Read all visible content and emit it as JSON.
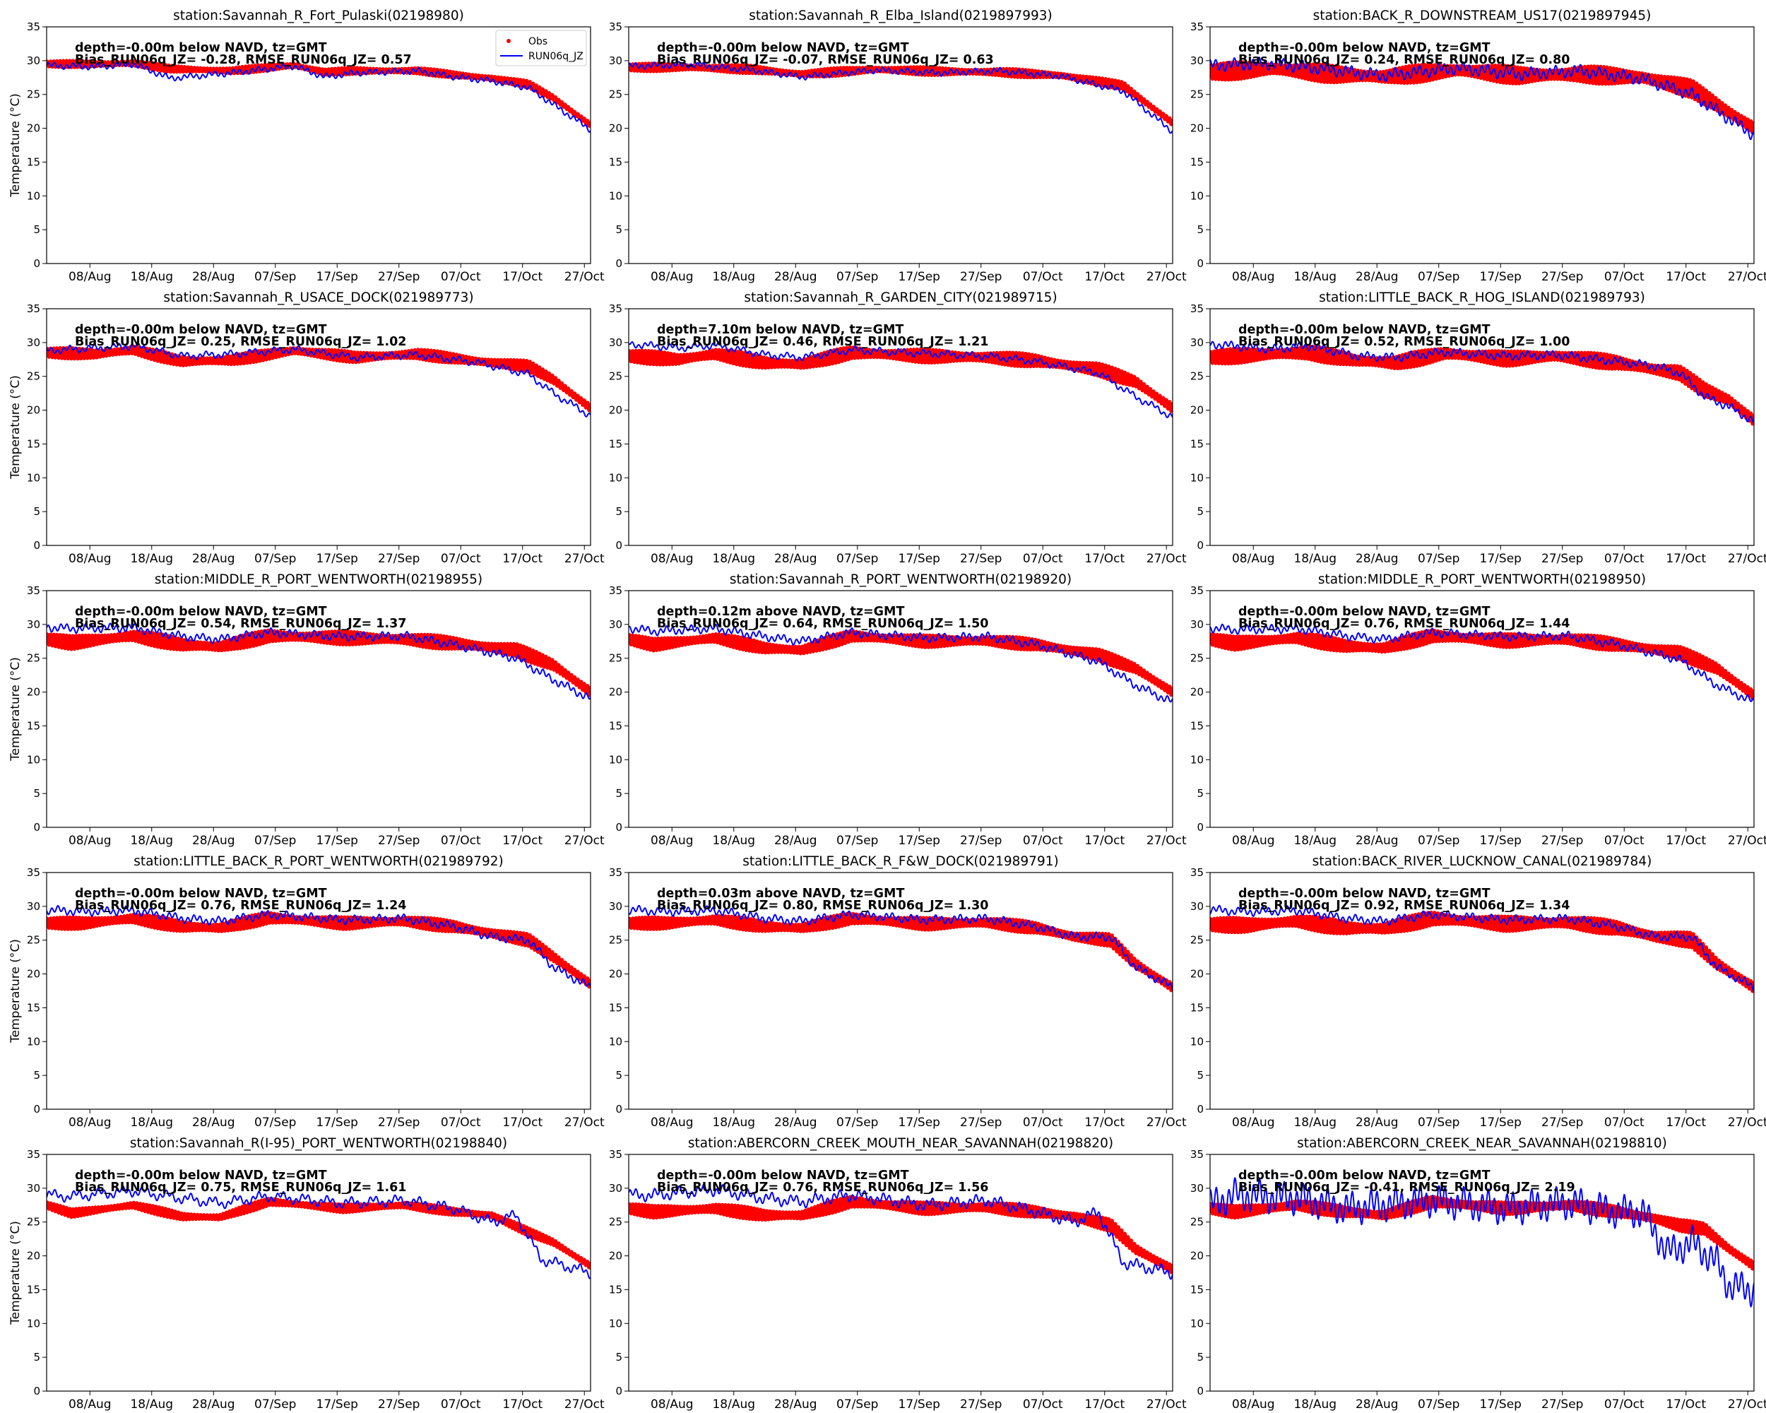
{
  "chart_data": {
    "type": "line",
    "ylabel": "Temperature ($^\\circ$C)",
    "ylabel_text": "Temperature (",
    "ylabel_unit": "°C)",
    "ylim": [
      0,
      35
    ],
    "yticks": [
      0,
      5,
      10,
      15,
      20,
      25,
      30,
      35
    ],
    "xlim_days": [
      0,
      88
    ],
    "xticks": [
      {
        "day": 7,
        "label": "08/Aug"
      },
      {
        "day": 17,
        "label": "18/Aug"
      },
      {
        "day": 27,
        "label": "28/Aug"
      },
      {
        "day": 37,
        "label": "07/Sep"
      },
      {
        "day": 47,
        "label": "17/Sep"
      },
      {
        "day": 57,
        "label": "27/Sep"
      },
      {
        "day": 67,
        "label": "07/Oct"
      },
      {
        "day": 77,
        "label": "17/Oct"
      },
      {
        "day": 87,
        "label": "27/Oct"
      }
    ],
    "legend": {
      "location": "top-right",
      "entries": [
        "Obs",
        "RUN06q_JZ"
      ]
    },
    "series_colors": {
      "obs": "#ff0000",
      "model": "#0000ff"
    },
    "panels": [
      {
        "title": "station:Savannah_R_Fort_Pulaski(02198980)",
        "depth": "depth=-0.00m below NAVD, tz=GMT",
        "stats": "Bias_RUN06q_JZ= -0.28, RMSE_RUN06q_JZ=  0.57",
        "obs_days": [
          0,
          8,
          14,
          20,
          30,
          40,
          45,
          50,
          60,
          66,
          72,
          78,
          82,
          88
        ],
        "obs": [
          29.5,
          29.5,
          29.6,
          28.8,
          28.5,
          29.3,
          28.3,
          28.5,
          28.5,
          27.9,
          27.4,
          26.5,
          24.5,
          20.5
        ],
        "obs_amp": 0.5,
        "model_days": [
          0,
          8,
          14,
          20,
          30,
          40,
          45,
          50,
          60,
          66,
          72,
          78,
          82,
          88
        ],
        "model": [
          29.3,
          29.1,
          29.5,
          27.4,
          28.2,
          29.2,
          27.6,
          28.2,
          28.5,
          27.6,
          27.0,
          26.0,
          23.5,
          19.8
        ],
        "model_amp": 0.3,
        "model_wiggle": 0.2
      },
      {
        "title": "station:Savannah_R_Elba_Island(0219897993)",
        "depth": "depth=-0.00m below NAVD, tz=GMT",
        "stats": "Bias_RUN06q_JZ= -0.07, RMSE_RUN06q_JZ=  0.63",
        "obs_days": [
          0,
          10,
          20,
          28,
          40,
          50,
          60,
          70,
          80,
          88
        ],
        "obs": [
          29.0,
          29.0,
          28.7,
          28.0,
          28.7,
          28.4,
          28.3,
          27.8,
          26.3,
          20.8
        ],
        "obs_amp": 0.6,
        "model_days": [
          0,
          10,
          20,
          28,
          40,
          50,
          60,
          70,
          80,
          88
        ],
        "model": [
          29.2,
          29.4,
          28.6,
          27.6,
          28.6,
          28.2,
          28.5,
          27.7,
          25.5,
          19.5
        ],
        "model_amp": 0.3,
        "model_wiggle": 0.2
      },
      {
        "title": "station:BACK_R_DOWNSTREAM_US17(0219897945)",
        "depth": "depth=-0.00m below NAVD, tz=GMT",
        "stats": "Bias_RUN06q_JZ=  0.24, RMSE_RUN06q_JZ=  0.80",
        "obs_days": [
          0,
          10,
          20,
          28,
          40,
          50,
          60,
          70,
          78,
          88
        ],
        "obs": [
          28.3,
          28.8,
          28.0,
          27.6,
          28.6,
          27.8,
          28.0,
          27.5,
          25.8,
          20.0
        ],
        "obs_amp": 1.3,
        "model_days": [
          0,
          10,
          20,
          28,
          40,
          50,
          60,
          70,
          78,
          88
        ],
        "model": [
          29.3,
          29.6,
          28.6,
          27.8,
          28.9,
          28.0,
          28.5,
          27.3,
          25.0,
          19.0
        ],
        "model_amp": 0.6,
        "model_wiggle": 0.4
      },
      {
        "title": "station:Savannah_R_USACE_DOCK(021989773)",
        "depth": "depth=-0.00m below NAVD, tz=GMT",
        "stats": "Bias_RUN06q_JZ=  0.25, RMSE_RUN06q_JZ=  1.02",
        "obs_days": [
          0,
          8,
          14,
          22,
          30,
          40,
          50,
          60,
          70,
          78,
          82,
          88
        ],
        "obs": [
          28.5,
          28.3,
          28.9,
          27.2,
          27.4,
          28.8,
          27.8,
          28.3,
          27.2,
          26.5,
          24.5,
          20.3
        ],
        "obs_amp": 0.8,
        "model_days": [
          0,
          8,
          14,
          22,
          30,
          40,
          50,
          60,
          70,
          78,
          82,
          88
        ],
        "model": [
          28.8,
          29.2,
          29.5,
          28.0,
          28.3,
          29.0,
          27.8,
          28.2,
          27.0,
          25.3,
          22.5,
          19.2
        ],
        "model_amp": 0.3,
        "model_wiggle": 0.3
      },
      {
        "title": "station:Savannah_R_GARDEN_CITY(021989715)",
        "depth": "depth=7.10m below NAVD, tz=GMT",
        "stats": "Bias_RUN06q_JZ=  0.46, RMSE_RUN06q_JZ=  1.21",
        "obs_days": [
          0,
          8,
          14,
          22,
          28,
          36,
          48,
          58,
          66,
          76,
          82,
          88
        ],
        "obs": [
          28.0,
          27.5,
          28.3,
          27.0,
          26.8,
          28.5,
          28.0,
          27.8,
          27.3,
          26.0,
          24.2,
          20.3
        ],
        "obs_amp": 1.0,
        "model_days": [
          0,
          8,
          14,
          22,
          28,
          36,
          48,
          58,
          66,
          76,
          82,
          88
        ],
        "model": [
          29.8,
          29.2,
          29.6,
          28.2,
          27.8,
          28.9,
          28.4,
          28.0,
          27.2,
          25.5,
          22.0,
          19.0
        ],
        "model_amp": 0.3,
        "model_wiggle": 0.3
      },
      {
        "title": "station:LITTLE_BACK_R_HOG_ISLAND(021989793)",
        "depth": "depth=-0.00m below NAVD, tz=GMT",
        "stats": "Bias_RUN06q_JZ=  0.52, RMSE_RUN06q_JZ=  1.00",
        "obs_days": [
          0,
          10,
          16,
          24,
          30,
          38,
          48,
          56,
          66,
          72,
          76,
          80,
          84,
          88
        ],
        "obs": [
          27.8,
          28.3,
          28.5,
          27.3,
          27.0,
          28.4,
          27.6,
          28.0,
          27.0,
          26.0,
          25.5,
          23.0,
          21.5,
          18.5
        ],
        "obs_amp": 1.1,
        "model_days": [
          0,
          10,
          16,
          24,
          30,
          38,
          48,
          56,
          66,
          72,
          76,
          80,
          84,
          88
        ],
        "model": [
          29.8,
          29.0,
          29.5,
          28.0,
          27.8,
          28.6,
          28.0,
          28.2,
          27.2,
          26.5,
          25.5,
          22.0,
          20.5,
          18.3
        ],
        "model_amp": 0.4,
        "model_wiggle": 0.3
      },
      {
        "title": "station:MIDDLE_R_PORT_WENTWORTH(02198955)",
        "depth": "depth=-0.00m below NAVD, tz=GMT",
        "stats": "Bias_RUN06q_JZ=  0.54, RMSE_RUN06q_JZ=  1.37",
        "obs_days": [
          0,
          4,
          14,
          22,
          28,
          36,
          48,
          58,
          66,
          76,
          82,
          88
        ],
        "obs": [
          27.8,
          27.3,
          28.3,
          27.0,
          26.7,
          28.3,
          28.0,
          27.8,
          27.2,
          26.2,
          24.0,
          20.0
        ],
        "obs_amp": 1.0,
        "model_days": [
          0,
          4,
          14,
          22,
          28,
          36,
          48,
          58,
          66,
          76,
          82,
          88
        ],
        "model": [
          29.6,
          29.4,
          29.5,
          28.2,
          27.8,
          28.8,
          28.2,
          28.3,
          27.0,
          25.0,
          21.8,
          19.0
        ],
        "model_amp": 0.4,
        "model_wiggle": 0.3
      },
      {
        "title": "station:Savannah_R_PORT_WENTWORTH(02198920)",
        "depth": "depth=0.12m above NAVD, tz=GMT",
        "stats": "Bias_RUN06q_JZ=  0.64, RMSE_RUN06q_JZ=  1.50",
        "obs_days": [
          0,
          4,
          14,
          22,
          28,
          36,
          48,
          58,
          66,
          76,
          82,
          88
        ],
        "obs": [
          27.8,
          27.0,
          28.0,
          26.5,
          26.2,
          28.3,
          27.5,
          27.6,
          27.0,
          25.5,
          23.5,
          20.0
        ],
        "obs_amp": 0.9,
        "model_days": [
          0,
          4,
          14,
          22,
          28,
          36,
          48,
          58,
          66,
          76,
          82,
          88
        ],
        "model": [
          29.5,
          29.0,
          29.4,
          28.2,
          27.5,
          28.8,
          28.0,
          28.2,
          27.0,
          24.5,
          21.0,
          18.5
        ],
        "model_amp": 0.4,
        "model_wiggle": 0.3
      },
      {
        "title": "station:MIDDLE_R_PORT_WENTWORTH(02198950)",
        "depth": "depth=-0.00m below NAVD, tz=GMT",
        "stats": "Bias_RUN06q_JZ=  0.76, RMSE_RUN06q_JZ=  1.44",
        "obs_days": [
          0,
          4,
          14,
          22,
          28,
          36,
          48,
          58,
          66,
          76,
          82,
          88
        ],
        "obs": [
          27.8,
          27.2,
          28.0,
          26.8,
          26.5,
          28.3,
          27.6,
          27.8,
          27.0,
          25.8,
          23.5,
          19.5
        ],
        "obs_amp": 1.0,
        "model_days": [
          0,
          4,
          14,
          22,
          28,
          36,
          48,
          58,
          66,
          76,
          82,
          88
        ],
        "model": [
          29.5,
          29.2,
          29.4,
          28.3,
          27.8,
          28.8,
          28.2,
          28.3,
          27.0,
          24.8,
          21.0,
          18.5
        ],
        "model_amp": 0.4,
        "model_wiggle": 0.3
      },
      {
        "title": "station:LITTLE_BACK_R_PORT_WENTWORTH(021989792)",
        "depth": "depth=-0.00m below NAVD, tz=GMT",
        "stats": "Bias_RUN06q_JZ=  0.76, RMSE_RUN06q_JZ=  1.24",
        "obs_days": [
          0,
          6,
          14,
          22,
          28,
          36,
          48,
          58,
          66,
          72,
          78,
          82,
          88
        ],
        "obs": [
          27.5,
          27.5,
          28.2,
          27.0,
          26.8,
          28.3,
          27.5,
          27.8,
          27.0,
          26.0,
          25.0,
          22.5,
          18.5
        ],
        "obs_amp": 0.9,
        "model_days": [
          0,
          6,
          14,
          22,
          28,
          36,
          48,
          58,
          66,
          72,
          78,
          82,
          88
        ],
        "model": [
          29.5,
          29.2,
          29.4,
          28.2,
          27.8,
          28.8,
          28.0,
          28.2,
          27.0,
          25.5,
          25.0,
          21.0,
          18.0
        ],
        "model_amp": 0.4,
        "model_wiggle": 0.3
      },
      {
        "title": "station:LITTLE_BACK_R_F&W_DOCK(021989791)",
        "depth": "depth=0.03m above NAVD, tz=GMT",
        "stats": "Bias_RUN06q_JZ=  0.80, RMSE_RUN06q_JZ=  1.30",
        "obs_days": [
          0,
          6,
          14,
          22,
          28,
          36,
          48,
          58,
          66,
          72,
          78,
          82,
          88
        ],
        "obs": [
          27.5,
          27.5,
          28.0,
          27.0,
          26.8,
          28.2,
          27.4,
          27.6,
          26.8,
          25.5,
          25.0,
          21.5,
          18.0
        ],
        "obs_amp": 0.9,
        "model_days": [
          0,
          6,
          14,
          22,
          28,
          36,
          48,
          58,
          66,
          72,
          78,
          82,
          88
        ],
        "model": [
          29.5,
          29.2,
          29.4,
          28.2,
          27.8,
          28.8,
          28.0,
          28.2,
          27.0,
          25.5,
          25.5,
          21.0,
          18.0
        ],
        "model_amp": 0.4,
        "model_wiggle": 0.3
      },
      {
        "title": "station:BACK_RIVER_LUCKNOW_CANAL(021989784)",
        "depth": "depth=-0.00m below NAVD, tz=GMT",
        "stats": "Bias_RUN06q_JZ=  0.92, RMSE_RUN06q_JZ=  1.34",
        "obs_days": [
          0,
          6,
          14,
          22,
          28,
          36,
          48,
          58,
          66,
          72,
          78,
          82,
          88
        ],
        "obs": [
          27.3,
          27.2,
          27.8,
          26.8,
          26.7,
          28.2,
          27.4,
          27.6,
          26.8,
          25.5,
          25.0,
          21.5,
          18.0
        ],
        "obs_amp": 1.1,
        "model_days": [
          0,
          6,
          14,
          22,
          28,
          36,
          48,
          58,
          66,
          72,
          78,
          82,
          88
        ],
        "model": [
          29.5,
          29.2,
          29.4,
          28.2,
          27.8,
          28.8,
          28.0,
          28.2,
          27.0,
          25.5,
          25.5,
          21.0,
          18.0
        ],
        "model_amp": 0.4,
        "model_wiggle": 0.3
      },
      {
        "title": "station:Savannah_R(I-95)_PORT_WENTWORTH(02198840)",
        "depth": "depth=-0.00m below NAVD, tz=GMT",
        "stats": "Bias_RUN06q_JZ=  0.75, RMSE_RUN06q_JZ=  1.61",
        "obs_days": [
          0,
          4,
          14,
          22,
          28,
          36,
          48,
          58,
          66,
          72,
          78,
          82,
          88
        ],
        "obs": [
          27.5,
          26.3,
          27.5,
          25.8,
          25.7,
          28.0,
          27.0,
          27.5,
          26.5,
          26.0,
          23.5,
          22.0,
          18.5
        ],
        "obs_amp": 0.6,
        "model_days": [
          0,
          4,
          14,
          22,
          28,
          36,
          48,
          58,
          66,
          72,
          76,
          80,
          88
        ],
        "model": [
          29.0,
          28.8,
          29.6,
          28.5,
          27.8,
          28.8,
          27.8,
          28.2,
          27.0,
          25.0,
          26.0,
          19.5,
          17.5
        ],
        "model_amp": 0.4,
        "model_wiggle": 0.5
      },
      {
        "title": "station:ABERCORN_CREEK_MOUTH_NEAR_SAVANNAH(02198820)",
        "depth": "depth=-0.00m below NAVD, tz=GMT",
        "stats": "Bias_RUN06q_JZ=  0.76, RMSE_RUN06q_JZ=  1.56",
        "obs_days": [
          0,
          4,
          14,
          22,
          28,
          36,
          48,
          58,
          66,
          72,
          78,
          82,
          88
        ],
        "obs": [
          27.0,
          26.5,
          27.0,
          26.0,
          26.0,
          28.0,
          27.0,
          27.2,
          26.5,
          25.8,
          24.5,
          21.0,
          18.0
        ],
        "obs_amp": 0.9,
        "model_days": [
          0,
          4,
          14,
          22,
          28,
          36,
          48,
          58,
          66,
          72,
          76,
          80,
          88
        ],
        "model": [
          29.0,
          29.0,
          29.8,
          28.5,
          28.0,
          29.0,
          27.5,
          28.2,
          26.5,
          25.0,
          26.5,
          19.0,
          17.5
        ],
        "model_amp": 0.5,
        "model_wiggle": 0.5
      },
      {
        "title": "station:ABERCORN_CREEK_NEAR_SAVANNAH(02198810)",
        "depth": "depth=-0.00m below NAVD, tz=GMT",
        "stats": "Bias_RUN06q_JZ= -0.41, RMSE_RUN06q_JZ=  2.19",
        "obs_days": [
          0,
          4,
          14,
          22,
          28,
          36,
          48,
          58,
          66,
          72,
          76,
          80,
          84,
          88
        ],
        "obs": [
          27.0,
          26.5,
          27.5,
          26.5,
          26.0,
          28.0,
          27.0,
          27.5,
          26.5,
          25.5,
          24.5,
          24.0,
          21.0,
          18.5
        ],
        "obs_amp": 0.9,
        "model_days": [
          0,
          4,
          14,
          22,
          28,
          36,
          48,
          58,
          66,
          70,
          74,
          78,
          82,
          84,
          88
        ],
        "model": [
          27.5,
          29.0,
          28.5,
          27.0,
          27.5,
          28.2,
          27.0,
          27.8,
          26.5,
          26.5,
          20.5,
          22.0,
          19.0,
          15.5,
          15.0
        ],
        "model_amp": 1.6,
        "model_wiggle": 1.0
      }
    ]
  }
}
